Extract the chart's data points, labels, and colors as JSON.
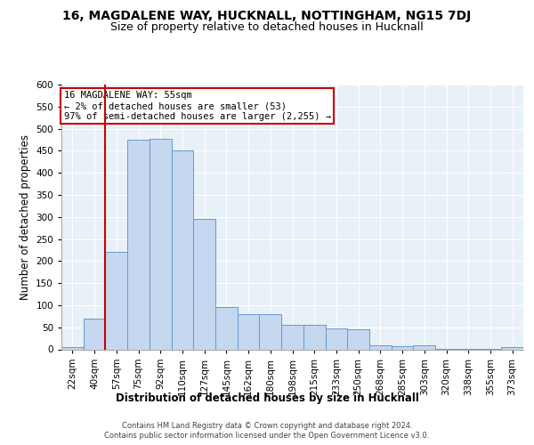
{
  "title": "16, MAGDALENE WAY, HUCKNALL, NOTTINGHAM, NG15 7DJ",
  "subtitle": "Size of property relative to detached houses in Hucknall",
  "xlabel": "Distribution of detached houses by size in Hucknall",
  "ylabel": "Number of detached properties",
  "footer_line1": "Contains HM Land Registry data © Crown copyright and database right 2024.",
  "footer_line2": "Contains public sector information licensed under the Open Government Licence v3.0.",
  "bin_labels": [
    "22sqm",
    "40sqm",
    "57sqm",
    "75sqm",
    "92sqm",
    "110sqm",
    "127sqm",
    "145sqm",
    "162sqm",
    "180sqm",
    "198sqm",
    "215sqm",
    "233sqm",
    "250sqm",
    "268sqm",
    "285sqm",
    "303sqm",
    "320sqm",
    "338sqm",
    "355sqm",
    "373sqm"
  ],
  "bar_values": [
    5,
    70,
    220,
    475,
    476,
    450,
    295,
    95,
    80,
    80,
    55,
    55,
    48,
    45,
    10,
    8,
    10,
    1,
    1,
    1,
    5
  ],
  "bar_color": "#c5d8f0",
  "bar_edge_color": "#6699cc",
  "property_label": "16 MAGDALENE WAY: 55sqm",
  "annotation_line1": "← 2% of detached houses are smaller (53)",
  "annotation_line2": "97% of semi-detached houses are larger (2,255) →",
  "vline_color": "#cc0000",
  "vline_x_index": 1.5,
  "annotation_box_color": "#cc0000",
  "ylim": [
    0,
    600
  ],
  "yticks": [
    0,
    50,
    100,
    150,
    200,
    250,
    300,
    350,
    400,
    450,
    500,
    550,
    600
  ],
  "bg_color": "#e8f0f8",
  "title_fontsize": 10,
  "subtitle_fontsize": 9,
  "axis_label_fontsize": 8.5,
  "tick_fontsize": 7.5,
  "annotation_fontsize": 7.5,
  "footer_fontsize": 6
}
